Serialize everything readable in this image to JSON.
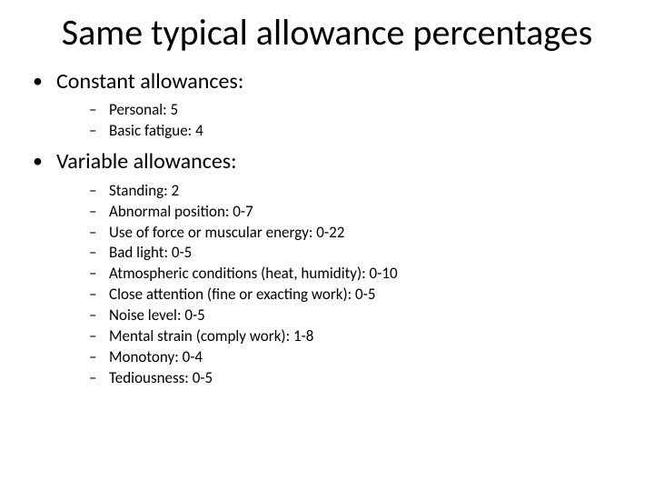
{
  "title": "Same typical allowance percentages",
  "sections": [
    {
      "heading": "Constant allowances:",
      "items": [
        "Personal: 5",
        "Basic fatigue: 4"
      ]
    },
    {
      "heading": "Variable allowances:",
      "items": [
        "Standing: 2",
        "Abnormal position: 0-7",
        "Use of force or muscular energy: 0-22",
        "Bad light: 0-5",
        "Atmospheric conditions (heat, humidity): 0-10",
        "Close attention (fine or exacting work): 0-5",
        "Noise level: 0-5",
        "Mental strain (comply work): 1-8",
        "Monotony: 0-4",
        "Tediousness: 0-5"
      ]
    }
  ],
  "style": {
    "background_color": "#ffffff",
    "text_color": "#000000",
    "title_fontsize": 40,
    "level1_fontsize": 24,
    "level2_fontsize": 17,
    "level1_bullet": "•",
    "level2_bullet": "–",
    "font_family": "Calibri"
  }
}
